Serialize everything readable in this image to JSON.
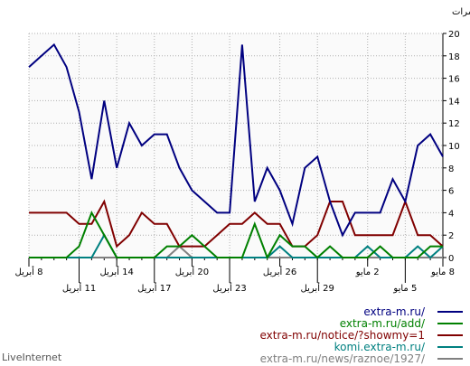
{
  "chart_data": {
    "type": "line",
    "title": "",
    "ylabel": "المرات",
    "xlabel": "",
    "ylim": [
      0,
      20
    ],
    "y_ticks": [
      0,
      2,
      4,
      6,
      8,
      10,
      12,
      14,
      16,
      18,
      20
    ],
    "grid": true,
    "x_count": 34,
    "x_tick_labels": [
      {
        "index": 0,
        "row": 1,
        "text": "8 مايو"
      },
      {
        "index": 3,
        "row": 2,
        "text": "5 مايو"
      },
      {
        "index": 6,
        "row": 1,
        "text": "2 مايو"
      },
      {
        "index": 10,
        "row": 2,
        "text": "29 أبريل"
      },
      {
        "index": 13,
        "row": 1,
        "text": "26 أبريل"
      },
      {
        "index": 17,
        "row": 2,
        "text": "23 أبريل"
      },
      {
        "index": 20,
        "row": 1,
        "text": "20 أبريل"
      },
      {
        "index": 23,
        "row": 2,
        "text": "17 أبريل"
      },
      {
        "index": 26,
        "row": 1,
        "text": "14 أبريل"
      },
      {
        "index": 29,
        "row": 2,
        "text": "11 أبريل"
      },
      {
        "index": 33,
        "row": 1,
        "text": "8 أبريل"
      }
    ],
    "series": [
      {
        "name": "extra-m.ru/",
        "color": "#000080",
        "values": [
          9,
          11,
          10,
          5,
          7,
          4,
          4,
          4,
          2,
          5,
          9,
          8,
          3,
          6,
          8,
          5,
          19,
          4,
          4,
          5,
          6,
          8,
          11,
          11,
          10,
          12,
          8,
          14,
          7,
          13,
          17,
          19,
          18,
          17
        ]
      },
      {
        "name": "extra-m.ru/add/",
        "color": "#008000",
        "values": [
          1,
          1,
          0,
          0,
          0,
          1,
          0,
          0,
          0,
          1,
          0,
          1,
          1,
          2,
          0,
          3,
          0,
          0,
          0,
          1,
          2,
          1,
          1,
          0,
          0,
          0,
          0,
          2,
          4,
          1,
          0,
          0,
          0,
          0
        ]
      },
      {
        "name": "extra-m.ru/notice/?showmy=1",
        "color": "#800000",
        "values": [
          1,
          2,
          2,
          5,
          2,
          2,
          2,
          2,
          5,
          5,
          2,
          1,
          1,
          3,
          3,
          4,
          3,
          3,
          2,
          1,
          1,
          1,
          3,
          3,
          4,
          2,
          1,
          5,
          3,
          3,
          4,
          4,
          4,
          4
        ]
      },
      {
        "name": "komi.extra-m.ru/",
        "color": "#008080",
        "values": [
          1,
          0,
          1,
          0,
          0,
          0,
          1,
          0,
          0,
          0,
          0,
          0,
          0,
          1,
          0,
          0,
          0,
          0,
          0,
          0,
          0,
          0,
          0,
          0,
          0,
          0,
          0,
          2,
          0,
          0,
          0,
          0,
          0,
          0
        ]
      },
      {
        "name": "extra-m.ru/news/raznoe/1927/",
        "color": "#808080",
        "values": [
          0,
          0,
          0,
          0,
          0,
          0,
          0,
          0,
          0,
          0,
          0,
          0,
          0,
          0,
          0,
          0,
          0,
          0,
          0,
          0,
          0,
          1,
          0,
          0,
          0,
          0,
          0,
          0,
          0,
          0,
          0,
          0,
          0,
          0
        ]
      }
    ]
  },
  "footer": {
    "brand": "LiveInternet"
  }
}
